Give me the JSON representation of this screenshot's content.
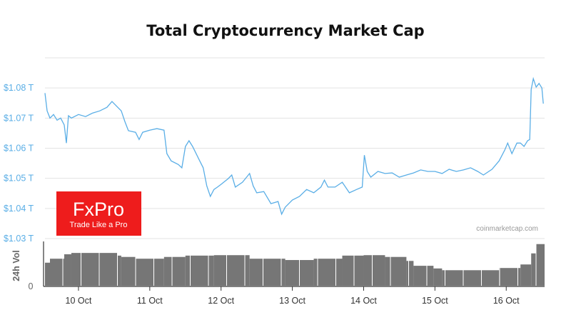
{
  "chart_data": {
    "type": "line",
    "title": "Total Cryptocurrency Market Cap",
    "watermark": "coinmarketcap.com",
    "logo": {
      "name": "FxPro",
      "tagline": "Trade Like a Pro",
      "color": "#ee1c1c"
    },
    "line_color": "#5aaee6",
    "volume_color": "#767676",
    "grid": true,
    "legend": "none",
    "y_tick_labels": [
      "$1.08 T",
      "$1.07 T",
      "$1.06 T",
      "$1.05 T",
      "$1.04 T",
      "$1.03 T"
    ],
    "y_ticks": [
      1.08,
      1.07,
      1.06,
      1.05,
      1.04,
      1.03
    ],
    "ylim": [
      1.03,
      1.09
    ],
    "x_tick_labels": [
      "10 Oct",
      "11 Oct",
      "12 Oct",
      "13 Oct",
      "14 Oct",
      "15 Oct",
      "16 Oct"
    ],
    "x_ticks": [
      "10-10 00:00",
      "10-11 00:00",
      "10-12 00:00",
      "10-13 00:00",
      "10-14 00:00",
      "10-15 00:00",
      "10-16 00:00"
    ],
    "xlim": [
      "10-09 12:43",
      "10-16 12:55"
    ],
    "series": [
      {
        "unit": "T USD",
        "points": [
          [
            "10-09 12:43",
            1.0783
          ],
          [
            "10-09 13:26",
            1.0724
          ],
          [
            "10-09 14:24",
            1.07
          ],
          [
            "10-09 15:36",
            1.0712
          ],
          [
            "10-09 16:48",
            1.0693
          ],
          [
            "10-09 18:00",
            1.07
          ],
          [
            "10-09 19:12",
            1.0677
          ],
          [
            "10-09 19:55",
            1.0617
          ],
          [
            "10-09 20:38",
            1.0708
          ],
          [
            "10-09 21:36",
            1.07
          ],
          [
            "10-10 00:00",
            1.0712
          ],
          [
            "10-10 02:24",
            1.0705
          ],
          [
            "10-10 04:48",
            1.0717
          ],
          [
            "10-10 07:12",
            1.0724
          ],
          [
            "10-10 09:36",
            1.0736
          ],
          [
            "10-10 11:17",
            1.0755
          ],
          [
            "10-10 13:12",
            1.0736
          ],
          [
            "10-10 14:24",
            1.0724
          ],
          [
            "10-10 15:36",
            1.0689
          ],
          [
            "10-10 16:48",
            1.0658
          ],
          [
            "10-10 19:12",
            1.0653
          ],
          [
            "10-10 20:24",
            1.0629
          ],
          [
            "10-10 21:36",
            1.0653
          ],
          [
            "10-11 00:00",
            1.066
          ],
          [
            "10-11 02:24",
            1.0665
          ],
          [
            "10-11 04:48",
            1.066
          ],
          [
            "10-11 05:46",
            1.0582
          ],
          [
            "10-11 07:12",
            1.0558
          ],
          [
            "10-11 09:36",
            1.0546
          ],
          [
            "10-11 10:48",
            1.0535
          ],
          [
            "10-11 12:00",
            1.0606
          ],
          [
            "10-11 13:12",
            1.0625
          ],
          [
            "10-11 14:24",
            1.0606
          ],
          [
            "10-11 16:48",
            1.0558
          ],
          [
            "10-11 18:00",
            1.0535
          ],
          [
            "10-11 19:12",
            1.0475
          ],
          [
            "10-11 20:24",
            1.044
          ],
          [
            "10-11 21:36",
            1.0463
          ],
          [
            "10-11 22:48",
            1.0471
          ],
          [
            "10-12 00:00",
            1.048
          ],
          [
            "10-12 02:24",
            1.0499
          ],
          [
            "10-12 03:36",
            1.0511
          ],
          [
            "10-12 04:48",
            1.0471
          ],
          [
            "10-12 07:12",
            1.0487
          ],
          [
            "10-12 09:36",
            1.0516
          ],
          [
            "10-12 10:48",
            1.0475
          ],
          [
            "10-12 12:00",
            1.0452
          ],
          [
            "10-12 14:24",
            1.0456
          ],
          [
            "10-12 16:48",
            1.0416
          ],
          [
            "10-12 19:12",
            1.0423
          ],
          [
            "10-12 20:24",
            1.0381
          ],
          [
            "10-12 21:36",
            1.0404
          ],
          [
            "10-13 00:00",
            1.0428
          ],
          [
            "10-13 02:24",
            1.044
          ],
          [
            "10-13 04:48",
            1.0463
          ],
          [
            "10-13 07:12",
            1.0452
          ],
          [
            "10-13 09:36",
            1.0471
          ],
          [
            "10-13 10:48",
            1.0494
          ],
          [
            "10-13 12:00",
            1.0471
          ],
          [
            "10-13 14:24",
            1.0471
          ],
          [
            "10-13 16:48",
            1.0487
          ],
          [
            "10-13 19:12",
            1.0452
          ],
          [
            "10-13 21:36",
            1.0463
          ],
          [
            "10-13 23:31",
            1.0471
          ],
          [
            "10-14 00:14",
            1.0577
          ],
          [
            "10-14 01:12",
            1.0523
          ],
          [
            "10-14 02:24",
            1.0504
          ],
          [
            "10-14 04:48",
            1.0523
          ],
          [
            "10-14 07:12",
            1.0516
          ],
          [
            "10-14 09:36",
            1.0518
          ],
          [
            "10-14 12:00",
            1.0504
          ],
          [
            "10-14 14:24",
            1.0511
          ],
          [
            "10-14 16:48",
            1.0518
          ],
          [
            "10-14 19:12",
            1.0528
          ],
          [
            "10-14 21:36",
            1.0523
          ],
          [
            "10-15 00:00",
            1.0523
          ],
          [
            "10-15 02:24",
            1.0516
          ],
          [
            "10-15 04:48",
            1.053
          ],
          [
            "10-15 07:12",
            1.0523
          ],
          [
            "10-15 09:36",
            1.0528
          ],
          [
            "10-15 12:00",
            1.0535
          ],
          [
            "10-15 14:24",
            1.0523
          ],
          [
            "10-15 16:19",
            1.0511
          ],
          [
            "10-15 19:12",
            1.053
          ],
          [
            "10-15 21:36",
            1.0558
          ],
          [
            "10-15 23:31",
            1.0594
          ],
          [
            "10-16 00:29",
            1.0617
          ],
          [
            "10-16 01:55",
            1.0582
          ],
          [
            "10-16 03:36",
            1.0617
          ],
          [
            "10-16 04:48",
            1.0617
          ],
          [
            "10-16 06:00",
            1.0606
          ],
          [
            "10-16 07:12",
            1.0625
          ],
          [
            "10-16 07:55",
            1.0629
          ],
          [
            "10-16 08:24",
            1.0795
          ],
          [
            "10-16 09:07",
            1.0831
          ],
          [
            "10-16 10:05",
            1.0803
          ],
          [
            "10-16 11:02",
            1.0815
          ],
          [
            "10-16 12:00",
            1.08
          ],
          [
            "10-16 12:29",
            1.0748
          ]
        ]
      }
    ],
    "volume": {
      "label": "24h Vol",
      "zero_label": "0",
      "note": "relative to volume axis maximum",
      "points": [
        [
          "10-09 12:43",
          0.52
        ],
        [
          "10-09 14:24",
          0.61
        ],
        [
          "10-09 19:12",
          0.71
        ],
        [
          "10-09 21:36",
          0.74
        ],
        [
          "10-10 13:12",
          0.68
        ],
        [
          "10-10 14:24",
          0.65
        ],
        [
          "10-10 19:12",
          0.61
        ],
        [
          "10-11 04:48",
          0.65
        ],
        [
          "10-11 12:00",
          0.68
        ],
        [
          "10-11 21:36",
          0.69
        ],
        [
          "10-12 09:36",
          0.61
        ],
        [
          "10-12 21:36",
          0.58
        ],
        [
          "10-13 07:12",
          0.61
        ],
        [
          "10-13 16:48",
          0.68
        ],
        [
          "10-14 00:00",
          0.69
        ],
        [
          "10-14 07:12",
          0.65
        ],
        [
          "10-14 14:24",
          0.56
        ],
        [
          "10-14 16:48",
          0.45
        ],
        [
          "10-14 23:31",
          0.39
        ],
        [
          "10-15 02:24",
          0.35
        ],
        [
          "10-15 21:36",
          0.4
        ],
        [
          "10-16 04:48",
          0.48
        ],
        [
          "10-16 08:24",
          0.73
        ],
        [
          "10-16 10:05",
          0.94
        ],
        [
          "10-16 12:55",
          0.94
        ]
      ]
    }
  }
}
